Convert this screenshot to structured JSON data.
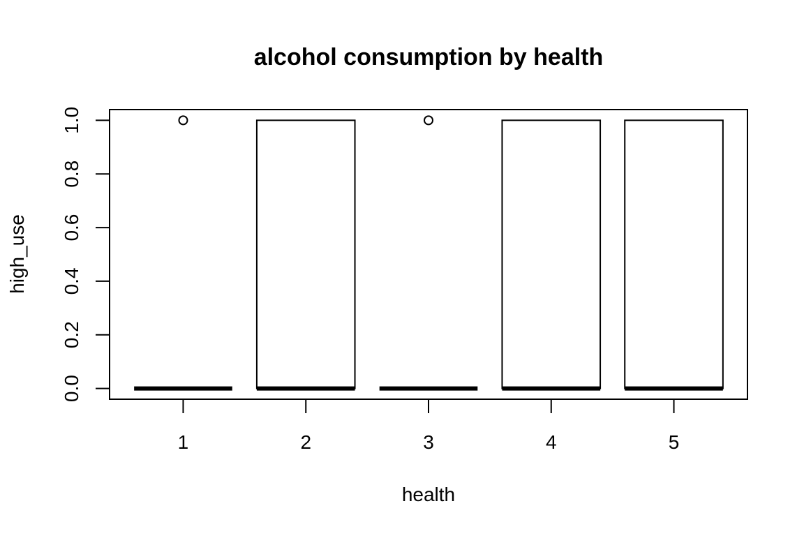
{
  "chart_data": {
    "type": "boxplot",
    "title": "alcohol consumption by health",
    "xlabel": "health",
    "ylabel": "high_use",
    "categories": [
      "1",
      "2",
      "3",
      "4",
      "5"
    ],
    "ylim": [
      -0.04,
      1.04
    ],
    "yticks": [
      0.0,
      0.2,
      0.4,
      0.6,
      0.8,
      1.0
    ],
    "ytick_labels": [
      "0.0",
      "0.2",
      "0.4",
      "0.6",
      "0.8",
      "1.0"
    ],
    "boxes": [
      {
        "category": "1",
        "q1": 0,
        "median": 0,
        "q3": 0,
        "whisker_low": 0,
        "whisker_high": 0,
        "outliers": [
          1
        ]
      },
      {
        "category": "2",
        "q1": 0,
        "median": 0,
        "q3": 1,
        "whisker_low": 0,
        "whisker_high": 1,
        "outliers": []
      },
      {
        "category": "3",
        "q1": 0,
        "median": 0,
        "q3": 0,
        "whisker_low": 0,
        "whisker_high": 0,
        "outliers": [
          1
        ]
      },
      {
        "category": "4",
        "q1": 0,
        "median": 0,
        "q3": 1,
        "whisker_low": 0,
        "whisker_high": 1,
        "outliers": []
      },
      {
        "category": "5",
        "q1": 0,
        "median": 0,
        "q3": 1,
        "whisker_low": 0,
        "whisker_high": 1,
        "outliers": []
      }
    ],
    "grid": false,
    "legend": "none"
  }
}
